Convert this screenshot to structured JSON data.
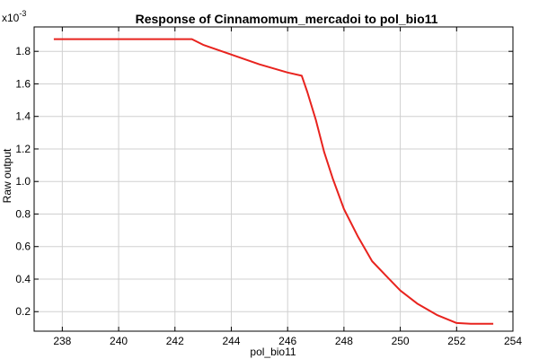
{
  "chart_data": {
    "type": "line",
    "title": "Response of Cinnamomum_mercadoi to pol_bio11",
    "xlabel": "pol_bio11",
    "ylabel": "Raw output",
    "y_multiplier_label": "x10",
    "y_multiplier_exponent": "-3",
    "xlim": [
      237,
      254
    ],
    "ylim": [
      0.08,
      1.95
    ],
    "grid": true,
    "x_ticks": [
      238,
      240,
      242,
      244,
      246,
      248,
      250,
      252,
      254
    ],
    "y_ticks": [
      0.2,
      0.4,
      0.6,
      0.8,
      1.0,
      1.2,
      1.4,
      1.6,
      1.8
    ],
    "x_tick_labels": [
      "238",
      "240",
      "242",
      "244",
      "246",
      "248",
      "250",
      "252",
      "254"
    ],
    "y_tick_labels": [
      "0.2",
      "0.4",
      "0.6",
      "0.8",
      "1.0",
      "1.2",
      "1.4",
      "1.6",
      "1.8"
    ],
    "series": [
      {
        "color": "#e8231e",
        "x": [
          237.7,
          238.5,
          239.5,
          240.5,
          241.5,
          242.6,
          243.0,
          244.0,
          245.0,
          246.0,
          246.5,
          246.7,
          247.0,
          247.3,
          247.6,
          248.0,
          248.5,
          249.0,
          249.5,
          250.0,
          250.6,
          251.3,
          252.0,
          252.5,
          253.3
        ],
        "y": [
          1.875,
          1.875,
          1.875,
          1.875,
          1.875,
          1.875,
          1.84,
          1.78,
          1.72,
          1.67,
          1.65,
          1.55,
          1.38,
          1.18,
          1.02,
          0.83,
          0.66,
          0.51,
          0.42,
          0.33,
          0.25,
          0.18,
          0.13,
          0.125,
          0.125
        ]
      }
    ]
  }
}
